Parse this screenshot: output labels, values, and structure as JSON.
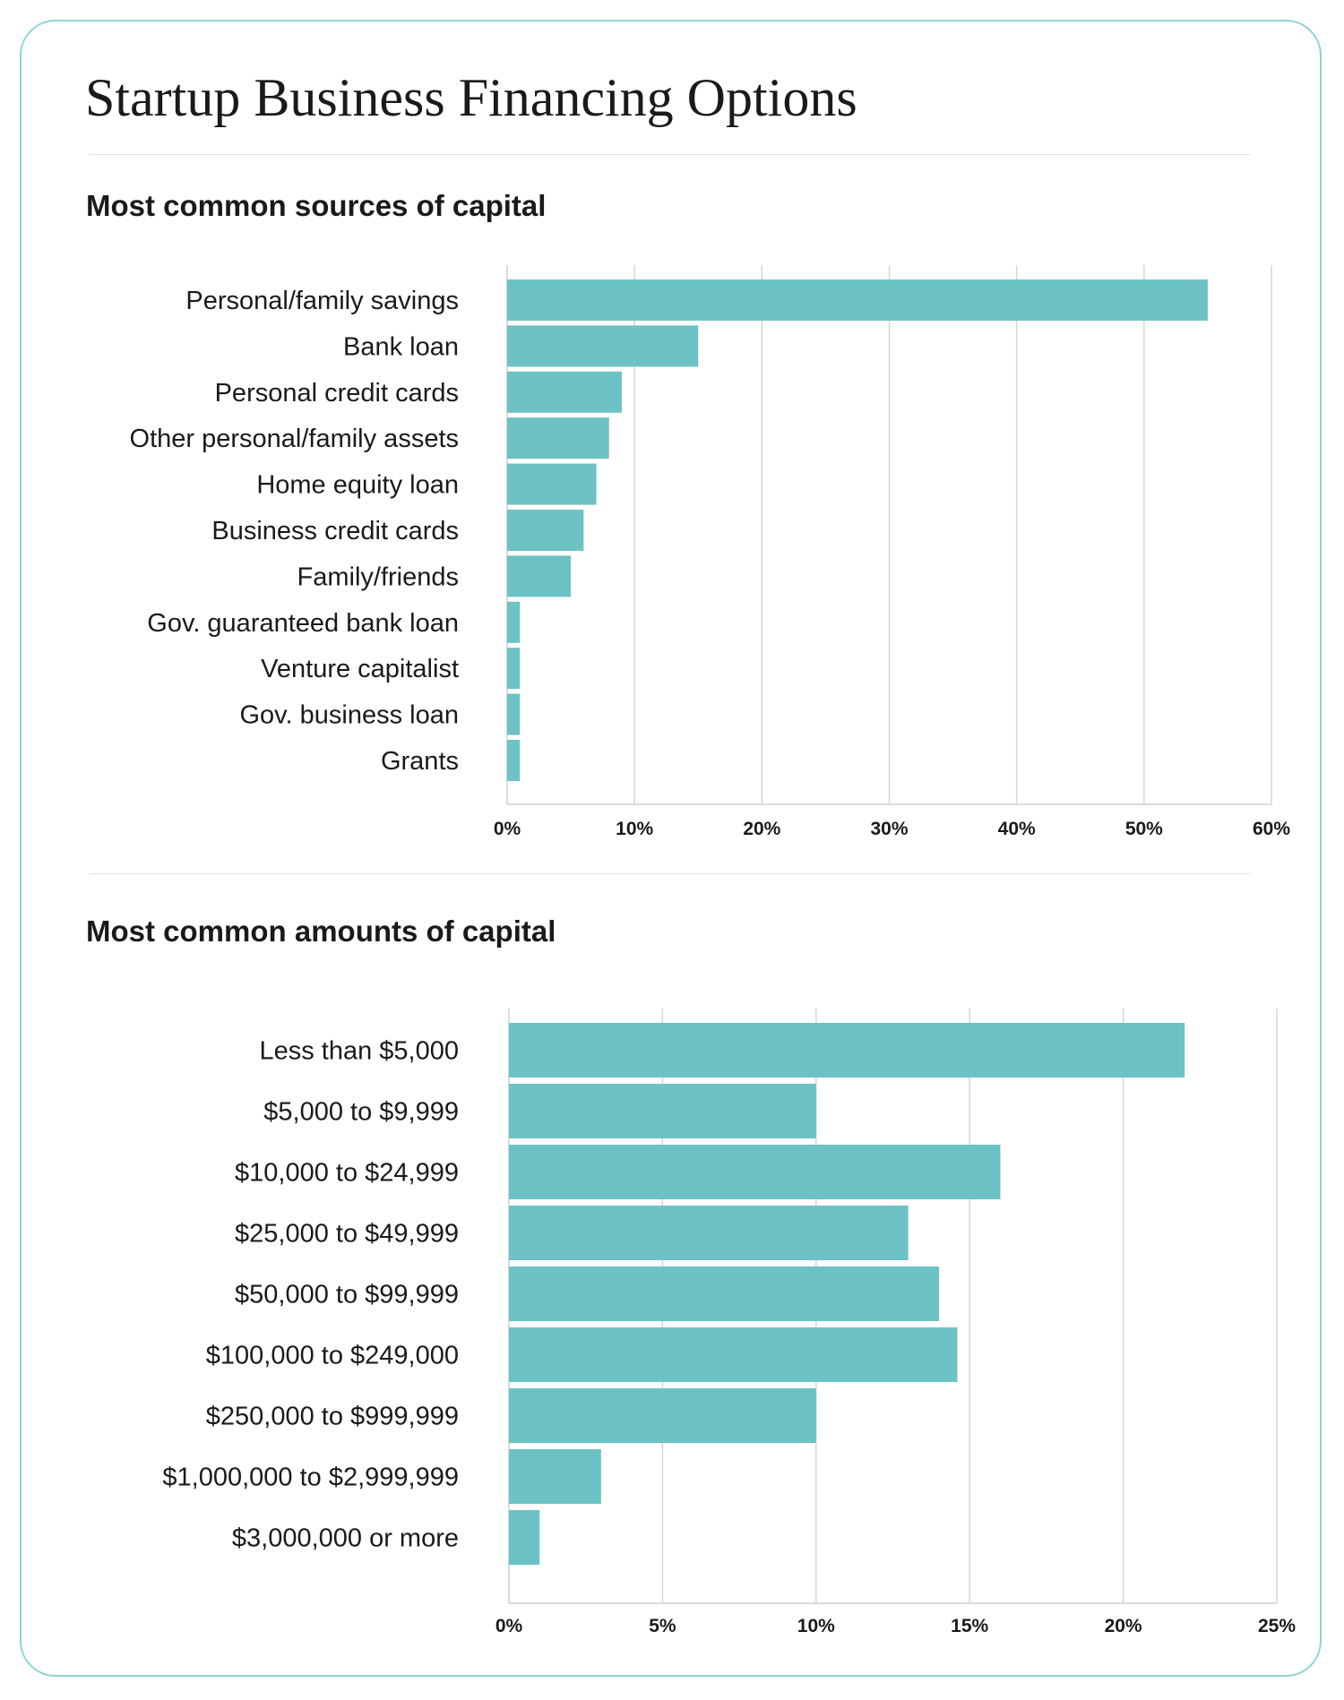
{
  "page": {
    "title": "Startup Business Financing Options"
  },
  "colors": {
    "bar": "#6cc2c4",
    "border": "#8fd3d4",
    "grid": "#d6d6d6"
  },
  "chart_data": [
    {
      "type": "bar",
      "orientation": "horizontal",
      "title": "Most common sources of capital",
      "categories": [
        "Personal/family savings",
        "Bank loan",
        "Personal credit cards",
        "Other personal/family assets",
        "Home equity loan",
        "Business credit cards",
        "Family/friends",
        "Gov. guaranteed bank loan",
        "Venture capitalist",
        "Gov. business loan",
        "Grants"
      ],
      "values": [
        55,
        15,
        9,
        8,
        7,
        6,
        5,
        1,
        1,
        1,
        1
      ],
      "xlim": [
        0,
        60
      ],
      "ticks": [
        0,
        10,
        20,
        30,
        40,
        50,
        60
      ],
      "tick_labels": [
        "0%",
        "10%",
        "20%",
        "30%",
        "40%",
        "50%",
        "60%"
      ],
      "grid": true,
      "unit": "%"
    },
    {
      "type": "bar",
      "orientation": "horizontal",
      "title": "Most common amounts of capital",
      "categories": [
        "Less than $5,000",
        "$5,000 to $9,999",
        "$10,000 to $24,999",
        "$25,000 to $49,999",
        "$50,000 to $99,999",
        "$100,000 to $249,000",
        "$250,000 to $999,999",
        "$1,000,000 to $2,999,999",
        "$3,000,000 or more"
      ],
      "values": [
        22,
        10,
        16,
        13,
        14,
        14.6,
        10,
        3,
        1
      ],
      "xlim": [
        0,
        25
      ],
      "ticks": [
        0,
        5,
        10,
        15,
        20,
        25
      ],
      "tick_labels": [
        "0%",
        "5%",
        "10%",
        "15%",
        "20%",
        "25%"
      ],
      "grid": true,
      "unit": "%"
    }
  ]
}
